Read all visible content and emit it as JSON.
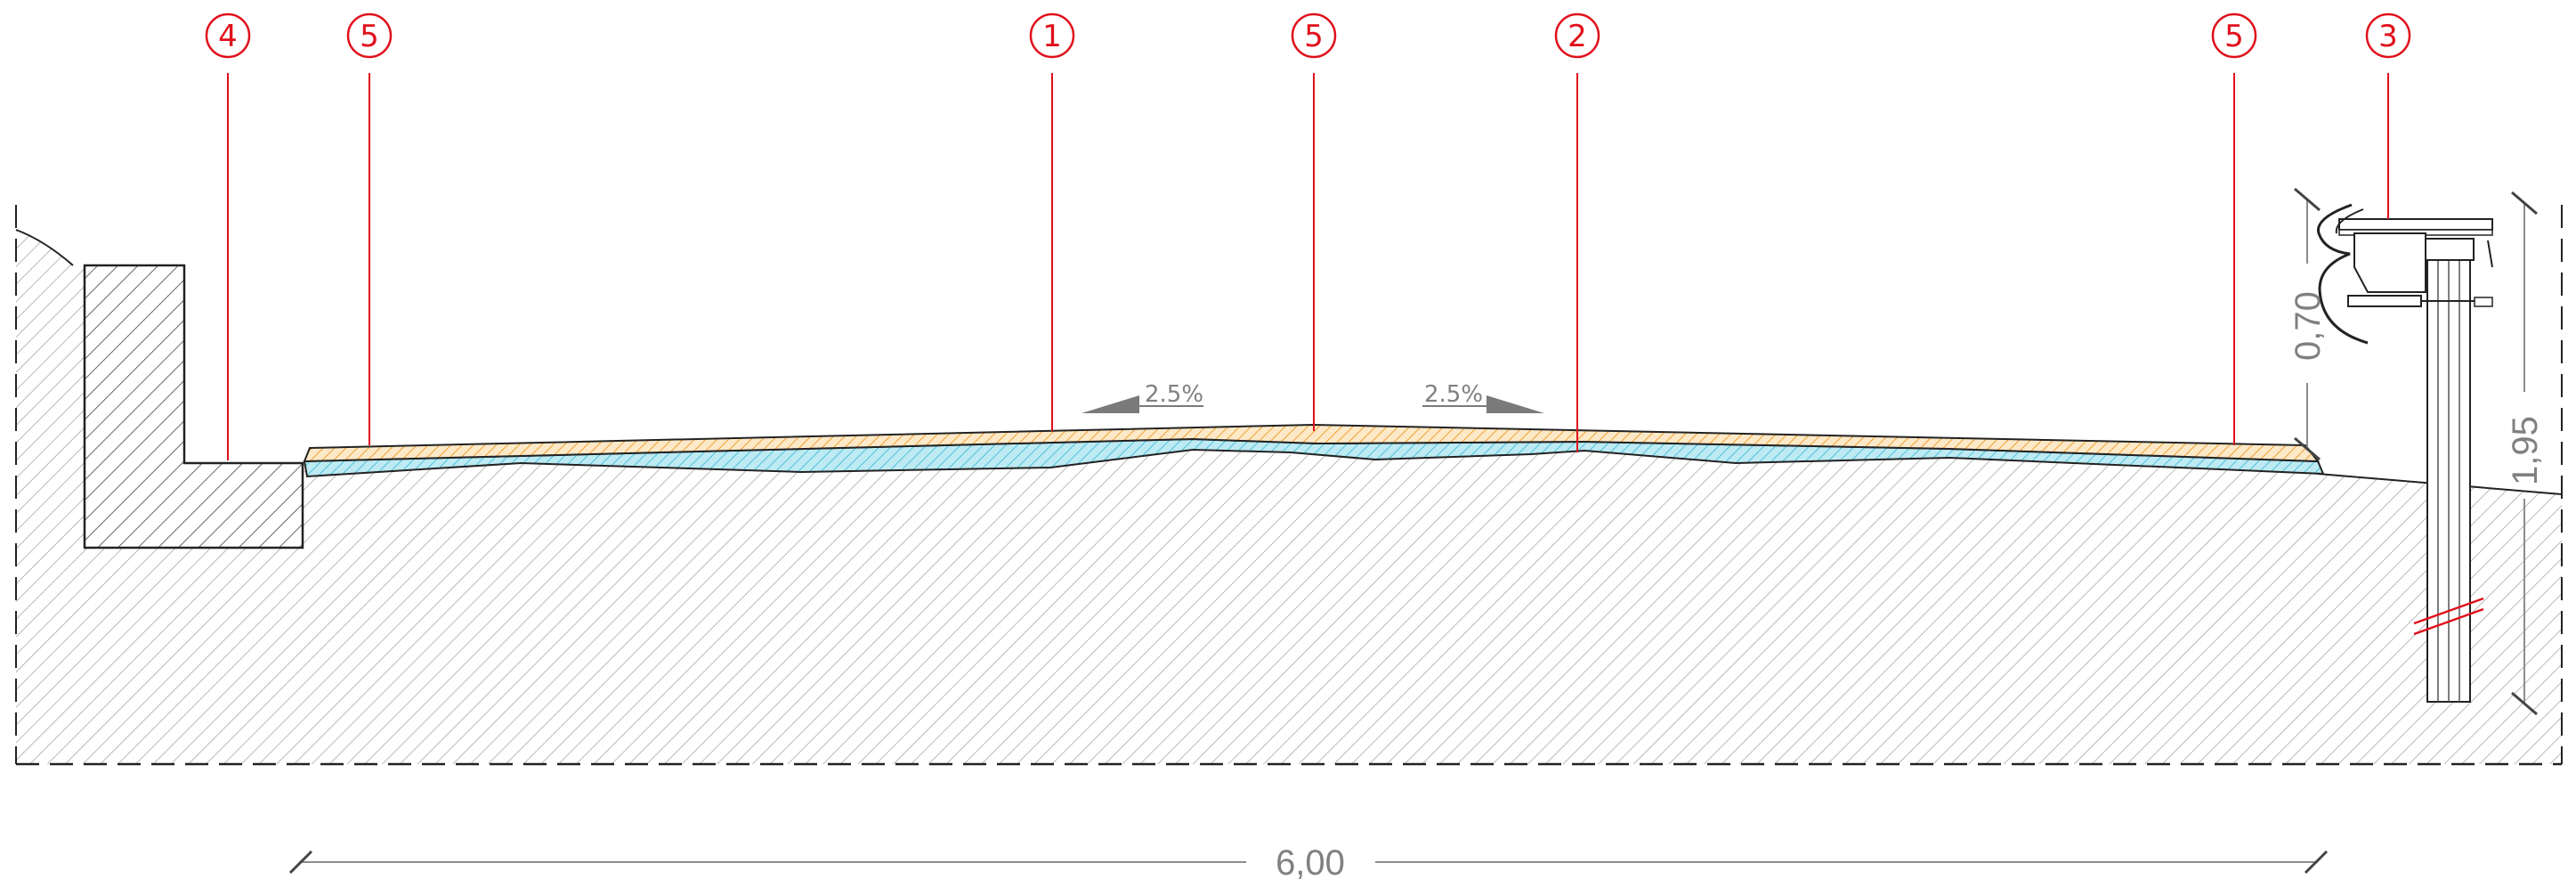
{
  "callouts": [
    {
      "label": "4"
    },
    {
      "label": "5"
    },
    {
      "label": "1"
    },
    {
      "label": "5"
    },
    {
      "label": "2"
    },
    {
      "label": "5"
    },
    {
      "label": "3"
    }
  ],
  "slopes": [
    {
      "label": "2.5%"
    },
    {
      "label": "2.5%"
    }
  ],
  "dimensions": {
    "overall_width": "6,00",
    "rail_height": "0,70",
    "post_height": "1,95"
  },
  "colors": {
    "callout_red": "#e0101b",
    "asphalt_orange": "#f5b14c",
    "subbase_cyan": "#7fd6e8",
    "hatch_grey": "#9a9a9a",
    "dimension_grey": "#8c8c8c"
  }
}
